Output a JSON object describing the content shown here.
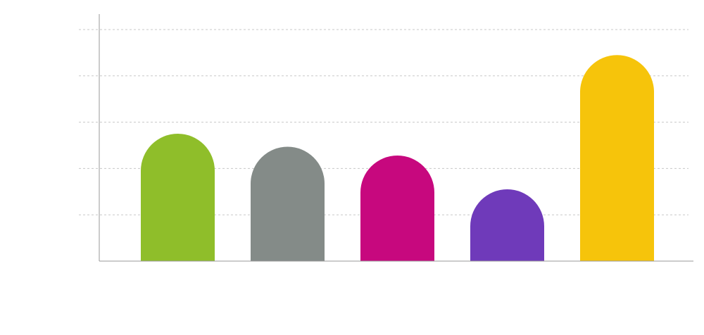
{
  "chart_data": {
    "type": "bar",
    "title": "",
    "xlabel": "",
    "ylabel": "",
    "categories": [
      "",
      "",
      "",
      "",
      ""
    ],
    "values": [
      2.75,
      2.47,
      2.28,
      1.55,
      4.45
    ],
    "colors": [
      "#8fbe2a",
      "#848b88",
      "#c7087e",
      "#6f3aba",
      "#f6c40b"
    ],
    "ylim": [
      0,
      5
    ],
    "grid": true,
    "bar_shape": "rounded-top",
    "legend": false
  },
  "style": {
    "grid_color": "#c8c8c8",
    "axis_color": "#9a9a9a"
  }
}
